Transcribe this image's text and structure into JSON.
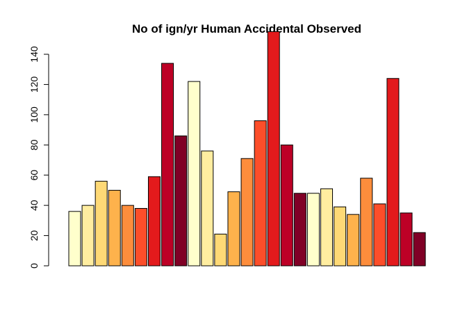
{
  "chart_data": {
    "type": "bar",
    "title": "No of ign/yr Human Accidental Observed",
    "xlabel": "",
    "ylabel": "",
    "ylim": [
      0,
      150
    ],
    "yticks": [
      0,
      20,
      40,
      60,
      80,
      100,
      120,
      140
    ],
    "grid": false,
    "values": [
      36,
      40,
      56,
      50,
      40,
      38,
      59,
      134,
      86,
      122,
      76,
      21,
      49,
      71,
      96,
      155,
      80,
      48,
      48,
      51,
      39,
      34,
      58,
      41,
      124,
      35,
      22
    ],
    "colors": [
      "#FFFFCC",
      "#FFEDA0",
      "#FED976",
      "#FEB24C",
      "#FD8D3C",
      "#FC4E2A",
      "#E31A1C",
      "#BD0026",
      "#800026",
      "#FFFFCC",
      "#FFEDA0",
      "#FED976",
      "#FEB24C",
      "#FD8D3C",
      "#FC4E2A",
      "#E31A1C",
      "#BD0026",
      "#800026",
      "#FFFFCC",
      "#FFEDA0",
      "#FED976",
      "#FEB24C",
      "#FD8D3C",
      "#FC4E2A",
      "#E31A1C",
      "#BD0026",
      "#800026"
    ]
  }
}
